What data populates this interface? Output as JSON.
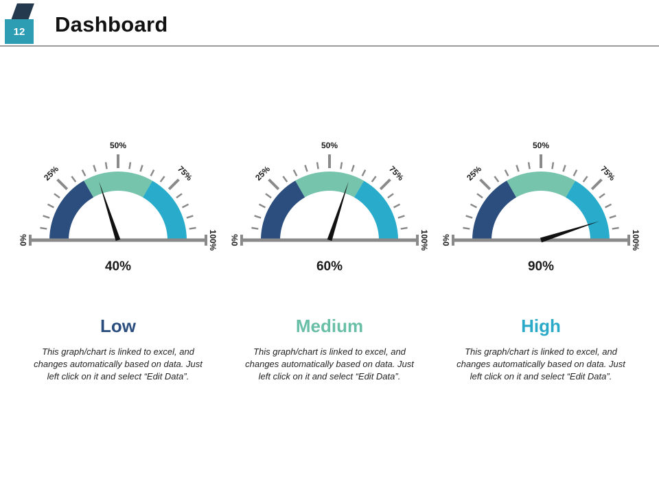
{
  "slide": {
    "number": "12",
    "title": "Dashboard"
  },
  "colors": {
    "accent_teal": "#2D9DB4",
    "accent_navy": "#24394E",
    "tick_gray": "#8A8A8A",
    "needle_black": "#111111"
  },
  "chart_data": [
    {
      "type": "gauge",
      "title": "Low",
      "title_color": "#2B4E7E",
      "value": 40,
      "value_label": "40%",
      "min": 0,
      "max": 100,
      "tick_labels": [
        "0%",
        "25%",
        "50%",
        "75%",
        "100%"
      ],
      "segments": [
        {
          "from": 0,
          "to": 33.4,
          "color": "#2B4E7E"
        },
        {
          "from": 33.4,
          "to": 66.7,
          "color": "#76C4AC"
        },
        {
          "from": 66.7,
          "to": 100,
          "color": "#29ACCB"
        }
      ],
      "caption": "This graph/chart is linked to excel, and changes automatically based on data. Just left click on it and select “Edit Data”."
    },
    {
      "type": "gauge",
      "title": "Medium",
      "title_color": "#69BEA6",
      "value": 60,
      "value_label": "60%",
      "min": 0,
      "max": 100,
      "tick_labels": [
        "0%",
        "25%",
        "50%",
        "75%",
        "100%"
      ],
      "segments": [
        {
          "from": 0,
          "to": 33.4,
          "color": "#2B4E7E"
        },
        {
          "from": 33.4,
          "to": 66.7,
          "color": "#76C4AC"
        },
        {
          "from": 66.7,
          "to": 100,
          "color": "#29ACCB"
        }
      ],
      "caption": "This graph/chart is linked to excel, and changes automatically based on data. Just left click on it and select “Edit Data”."
    },
    {
      "type": "gauge",
      "title": "High",
      "title_color": "#2BA9C8",
      "value": 90,
      "value_label": "90%",
      "min": 0,
      "max": 100,
      "tick_labels": [
        "0%",
        "25%",
        "50%",
        "75%",
        "100%"
      ],
      "segments": [
        {
          "from": 0,
          "to": 33.4,
          "color": "#2B4E7E"
        },
        {
          "from": 33.4,
          "to": 66.7,
          "color": "#76C4AC"
        },
        {
          "from": 66.7,
          "to": 100,
          "color": "#29ACCB"
        }
      ],
      "caption": "This graph/chart is linked to excel, and changes automatically based on data. Just left click on it and select “Edit Data”."
    }
  ]
}
